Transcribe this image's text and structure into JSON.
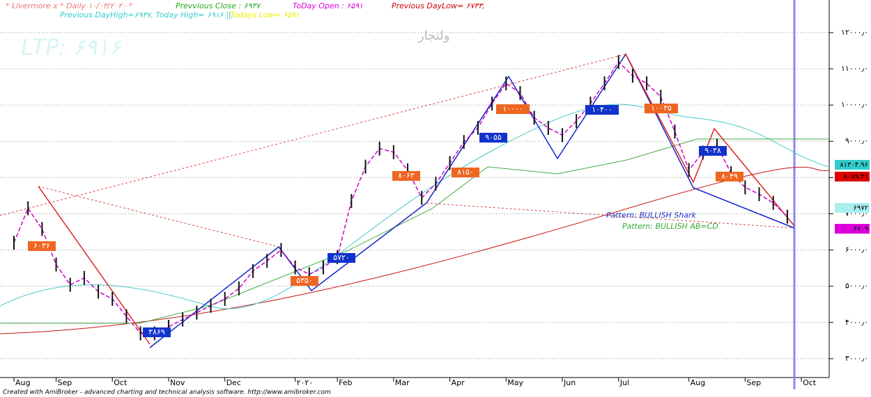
{
  "chart_data": {
    "type": "price",
    "title": "* Livermore x * Daily ۱۰/۰۳/۲۰۲۰ *",
    "header": [
      {
        "text": "Prevvious Close : ۶۹۳۷",
        "color": "#22aa22"
      },
      {
        "text": "ToDay Open : ۶۵۹۱",
        "color": "#dd00dd"
      },
      {
        "text": "Previous DayLow= ۶۷۳۳,",
        "color": "#cc0000"
      },
      {
        "text": "Previous DayHigh=۶۹۳۷, Today High= ۶۹۱۶ ||;",
        "color": "#33cccc"
      },
      {
        "text": "Todays Low= ۶۵۹۱",
        "color": "#eeee00"
      }
    ],
    "symbol": "ولتجار",
    "ltp": "LTP: ۶۹۱۶",
    "footer": "Created with AmiBroker - advanced charting and technical analysis software. http://www.amibroker.com",
    "patterns": [
      {
        "text": "Pattern: BULLISH Shark",
        "color": "#2233cc"
      },
      {
        "text": "Pattern: BULLISH AB=CD",
        "color": "#33aa33"
      }
    ],
    "boxes": [
      {
        "text": "۶۰۳۶",
        "color": "#ee6622"
      },
      {
        "text": "۳۸۶۹",
        "color": "#1133cc"
      },
      {
        "text": "۵۳۵۰",
        "color": "#ee6622"
      },
      {
        "text": "۵۷۲۰",
        "color": "#1133cc"
      },
      {
        "text": "۸۰۶۳",
        "color": "#ee6622"
      },
      {
        "text": "۸۱۵۰",
        "color": "#ee6622"
      },
      {
        "text": "۹۰۵۵",
        "color": "#1133cc"
      },
      {
        "text": "۱۰۰۰۰",
        "color": "#ee6622"
      },
      {
        "text": "۱۰۴۰۰",
        "color": "#1133cc"
      },
      {
        "text": "۱۰۰۳۵",
        "color": "#ee6622"
      },
      {
        "text": "۹۰۳۸",
        "color": "#1133cc"
      },
      {
        "text": "۸۰۴۹",
        "color": "#ee6622"
      }
    ],
    "right_labels": [
      {
        "text": "۸۱۳۰۴.۹۶",
        "color": "#33cccc"
      },
      {
        "text": "۸۰۸۹.۴۱",
        "color": "#dd0000"
      },
      {
        "text": "۶۹۷۲",
        "color": "#aaeeee"
      },
      {
        "text": "۶۷۰۹",
        "color": "#dd00dd"
      }
    ],
    "categories": [
      "Aug",
      null,
      null,
      "Sep",
      null,
      null,
      null,
      "Oct",
      null,
      null,
      null,
      "Nov",
      null,
      null,
      null,
      "Dec",
      null,
      null,
      null,
      null,
      "۲۰۲۰",
      null,
      null,
      "Feb",
      null,
      null,
      null,
      "Mar",
      null,
      null,
      null,
      "Apr",
      null,
      null,
      null,
      "May",
      null,
      null,
      null,
      "Jun",
      null,
      null,
      null,
      "Jul",
      null,
      null,
      null,
      null,
      "Aug",
      null,
      null,
      null,
      "Sep",
      null,
      null,
      null,
      "Oct"
    ],
    "values": [
      6200,
      7150,
      6580,
      5600,
      5040,
      5230,
      4850,
      4650,
      4170,
      3700,
      3700,
      3880,
      4080,
      4270,
      4460,
      4650,
      4940,
      5420,
      5700,
      6000,
      5520,
      5330,
      5520,
      5800,
      7350,
      8300,
      8800,
      8700,
      8200,
      7440,
      7830,
      8400,
      8980,
      9370,
      10040,
      10600,
      10330,
      9650,
      9370,
      9170,
      9560,
      10040,
      10600,
      11190,
      10810,
      10600,
      10230,
      9270,
      8210,
      8690,
      8880,
      8120,
      7730,
      7540,
      7300,
      6920,
      null
    ],
    "color": "#111111",
    "ylim": [
      2480,
      12900
    ],
    "yticks": [
      {
        "value": 3000,
        "label": "۳۰۰۰٫۰"
      },
      {
        "value": 4000,
        "label": "۴۰۰۰٫۰"
      },
      {
        "value": 5000,
        "label": "۵۰۰۰٫۰"
      },
      {
        "value": 6000,
        "label": "۶۰۰۰٫۰"
      },
      {
        "value": 7000,
        "label": "۷۰۰۰٫۰"
      },
      {
        "value": 8000,
        "label": "۸۰۰۰٫۰"
      },
      {
        "value": 9000,
        "label": "۹۰۰۰٫۰"
      },
      {
        "value": 10000,
        "label": "۱۰۰۰۰٫۰"
      },
      {
        "value": 11000,
        "label": "۱۱۰۰۰٫۰"
      },
      {
        "value": 12000,
        "label": "۱۲۰۰۰٫۰"
      }
    ],
    "grid": true
  }
}
